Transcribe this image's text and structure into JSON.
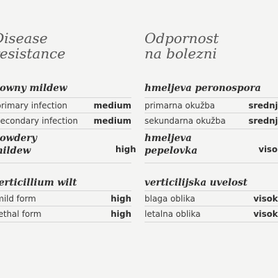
{
  "en": {
    "title_line1": "Disease",
    "title_line2": "resistance",
    "downy": {
      "title": "downy mildew",
      "rows": [
        {
          "label": "primary infection",
          "value": "medium"
        },
        {
          "label": "secondary infection",
          "value": "medium"
        }
      ]
    },
    "powdery": {
      "title_line1": "powdery",
      "title_line2": "mildew",
      "value": "high"
    },
    "wilt": {
      "title": "verticillium wilt",
      "rows": [
        {
          "label": "mild form",
          "value": "high"
        },
        {
          "label": "lethal form",
          "value": "high"
        }
      ]
    }
  },
  "sl": {
    "title_line1": "Odpornost",
    "title_line2": "na bolezni",
    "downy": {
      "title": "hmeljeva peronospora",
      "rows": [
        {
          "label": "primarna okužba",
          "value": "srednja"
        },
        {
          "label": "sekundarna okužba",
          "value": "srednja"
        }
      ]
    },
    "powdery": {
      "title_line1": "hmeljeva",
      "title_line2": "pepelovka",
      "value": "visoka"
    },
    "wilt": {
      "title": "verticilijska uvelost",
      "rows": [
        {
          "label": "blaga oblika",
          "value": "visoka"
        },
        {
          "label": "letalna oblika",
          "value": "visoka"
        }
      ]
    }
  }
}
